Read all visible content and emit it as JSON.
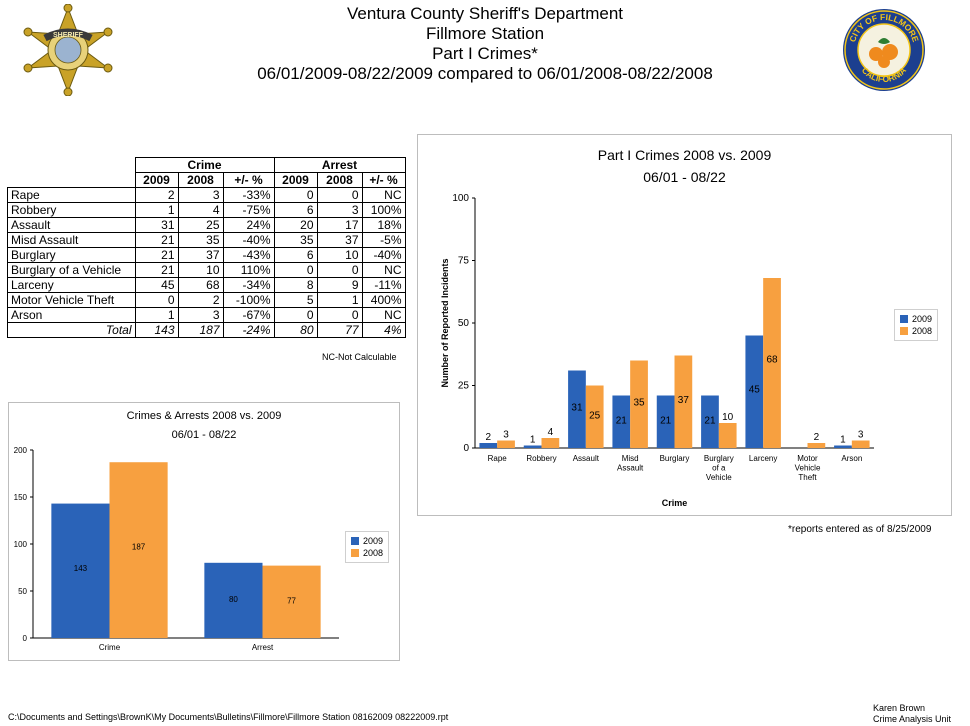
{
  "header": {
    "line1": "Ventura County Sheriff's Department",
    "line2": "Fillmore Station",
    "line3": "Part I Crimes*",
    "line4": "06/01/2009-08/22/2009 compared to 06/01/2008-08/22/2008"
  },
  "logos": {
    "badge": {
      "icon": "sheriff-star-badge-icon",
      "text": "SHERIFF"
    },
    "seal": {
      "icon": "city-of-fillmore-seal-icon",
      "text_top": "CITY OF FILLMORE",
      "text_bottom": "CALIFORNIA"
    }
  },
  "table": {
    "group_headers": [
      "Crime",
      "Arrest"
    ],
    "col_headers": [
      "2009",
      "2008",
      "+/- %",
      "2009",
      "2008",
      "+/- %"
    ],
    "rows": [
      {
        "label": "Rape",
        "c2009": "2",
        "c2008": "3",
        "cpct": "-33%",
        "a2009": "0",
        "a2008": "0",
        "apct": "NC"
      },
      {
        "label": "Robbery",
        "c2009": "1",
        "c2008": "4",
        "cpct": "-75%",
        "a2009": "6",
        "a2008": "3",
        "apct": "100%"
      },
      {
        "label": "Assault",
        "c2009": "31",
        "c2008": "25",
        "cpct": "24%",
        "a2009": "20",
        "a2008": "17",
        "apct": "18%"
      },
      {
        "label": "Misd  Assault",
        "c2009": "21",
        "c2008": "35",
        "cpct": "-40%",
        "a2009": "35",
        "a2008": "37",
        "apct": "-5%"
      },
      {
        "label": "Burglary",
        "c2009": "21",
        "c2008": "37",
        "cpct": "-43%",
        "a2009": "6",
        "a2008": "10",
        "apct": "-40%"
      },
      {
        "label": "Burglary of a Vehicle",
        "c2009": "21",
        "c2008": "10",
        "cpct": "110%",
        "a2009": "0",
        "a2008": "0",
        "apct": "NC"
      },
      {
        "label": "Larceny",
        "c2009": "45",
        "c2008": "68",
        "cpct": "-34%",
        "a2009": "8",
        "a2008": "9",
        "apct": "-11%"
      },
      {
        "label": "Motor Vehicle Theft",
        "c2009": "0",
        "c2008": "2",
        "cpct": "-100%",
        "a2009": "5",
        "a2008": "1",
        "apct": "400%"
      },
      {
        "label": "Arson",
        "c2009": "1",
        "c2008": "3",
        "cpct": "-67%",
        "a2009": "0",
        "a2008": "0",
        "apct": "NC"
      }
    ],
    "total": {
      "label": "Total",
      "c2009": "143",
      "c2008": "187",
      "cpct": "-24%",
      "a2009": "80",
      "a2008": "77",
      "apct": "4%"
    },
    "note": "NC-Not Calculable"
  },
  "colors": {
    "s2009": "#2a63b8",
    "s2008": "#f7a040"
  },
  "chart_data": [
    {
      "type": "bar",
      "title": "Part I Crimes 2008 vs. 2009",
      "subtitle": "06/01 - 08/22",
      "xlabel": "Crime",
      "ylabel": "Number of Reported Incidents",
      "ylim": [
        0,
        100
      ],
      "yticks": [
        0,
        25,
        50,
        75,
        100
      ],
      "categories": [
        "Rape",
        "Robbery",
        "Assault",
        "Misd\nAssault",
        "Burglary",
        "Burglary\nof a\nVehicle",
        "Larceny",
        "Motor\nVehicle\nTheft",
        "Arson"
      ],
      "series": [
        {
          "name": "2009",
          "values": [
            2,
            1,
            31,
            21,
            21,
            21,
            45,
            0,
            1
          ],
          "labels": [
            "2",
            "1",
            "31",
            "21",
            "21",
            "21",
            "45",
            "",
            "1"
          ]
        },
        {
          "name": "2008",
          "values": [
            3,
            4,
            25,
            35,
            37,
            10,
            68,
            2,
            3
          ],
          "labels": [
            "3",
            "4",
            "25",
            "35",
            "37",
            "10",
            "68",
            "2",
            "3"
          ]
        }
      ],
      "legend": "right",
      "grid": false
    },
    {
      "type": "bar",
      "title": "Crimes & Arrests 2008 vs. 2009",
      "subtitle": "06/01 - 08/22",
      "xlabel": "",
      "ylabel": "",
      "ylim": [
        0,
        200
      ],
      "yticks": [
        0,
        50,
        100,
        150,
        200
      ],
      "categories": [
        "Crime",
        "Arrest"
      ],
      "series": [
        {
          "name": "2009",
          "values": [
            143,
            80
          ],
          "labels": [
            "143",
            "80"
          ]
        },
        {
          "name": "2008",
          "values": [
            187,
            77
          ],
          "labels": [
            "187",
            "77"
          ]
        }
      ],
      "legend": "right",
      "grid": false
    }
  ],
  "footer": {
    "path": "C:\\Documents and Settings\\BrownK\\My Documents\\Bulletins\\Fillmore\\Fillmore Station 08162009 08222009.rpt",
    "author": "Karen Brown",
    "unit": "Crime Analysis Unit",
    "reports_note": "*reports entered as of 8/25/2009"
  }
}
